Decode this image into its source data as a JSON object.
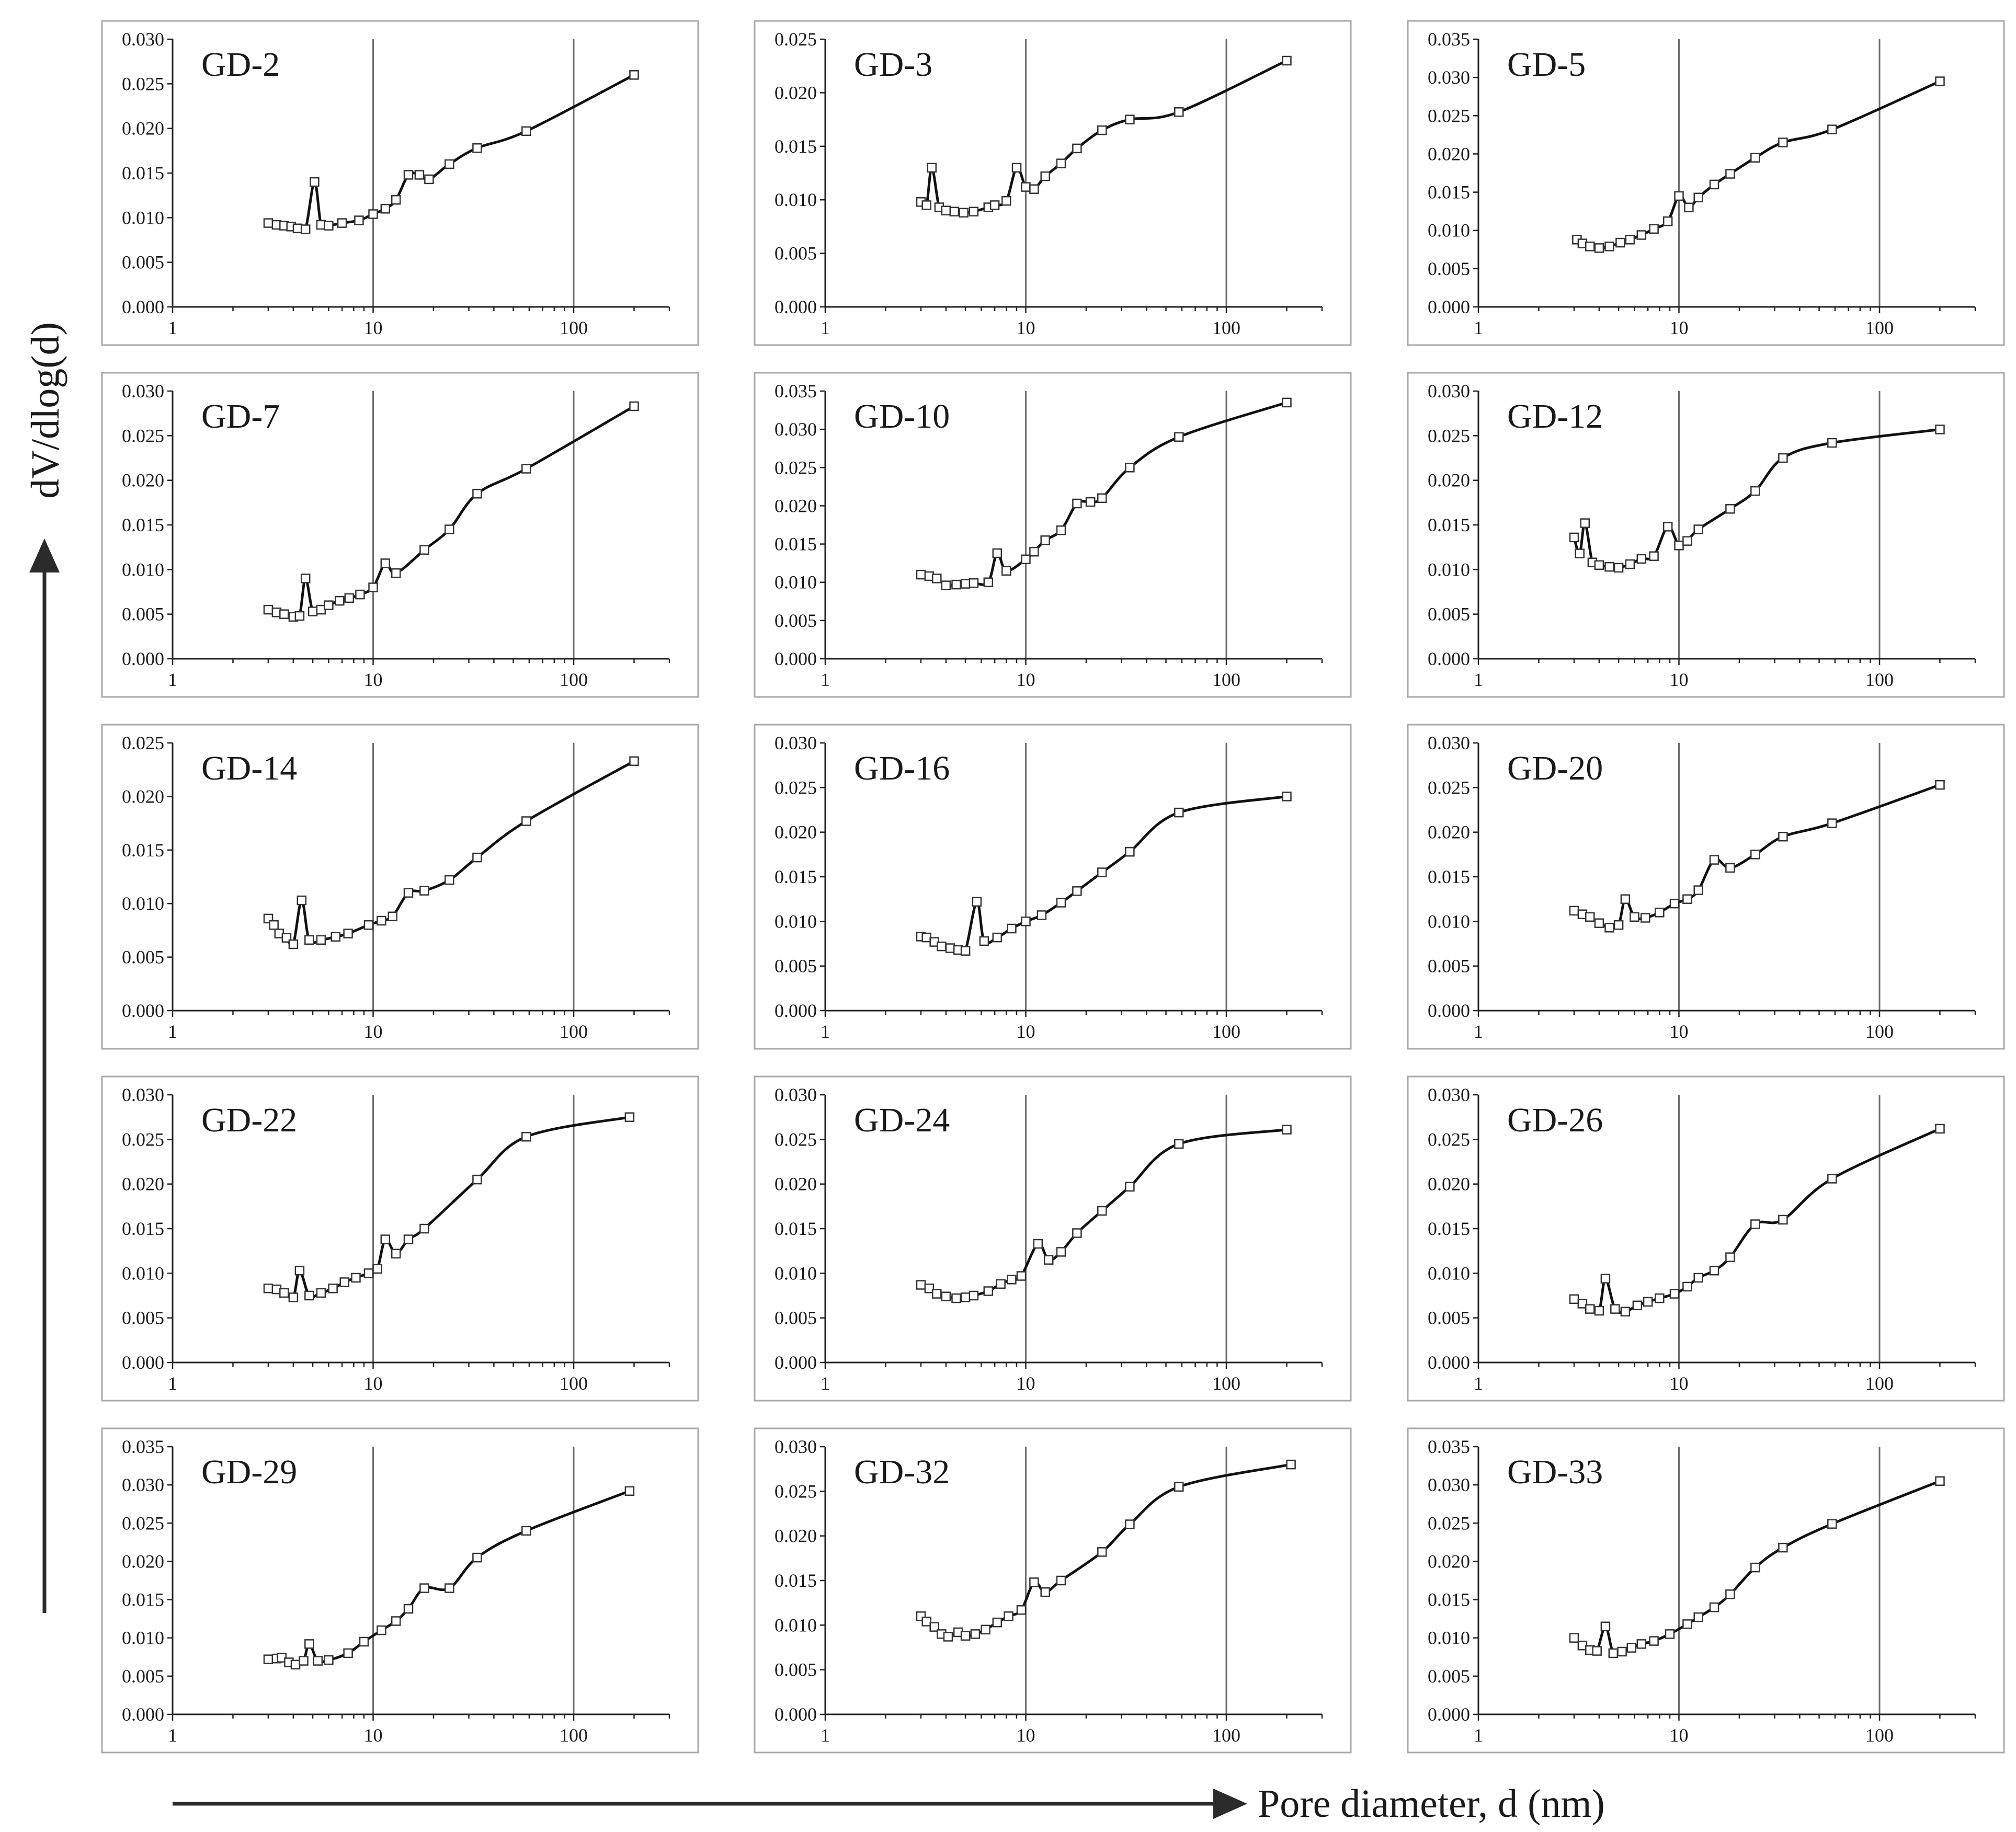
{
  "figure": {
    "ylabel": "dV/dlog(d)",
    "xlabel": "Pore diameter, d (nm)"
  },
  "chart_data": [
    {
      "type": "line",
      "title": "GD-2",
      "xscale": "log",
      "xlim": [
        1,
        300
      ],
      "ylim": [
        0,
        0.03
      ],
      "xticks": [
        1,
        10,
        100
      ],
      "yticks": [
        0,
        0.005,
        0.01,
        0.015,
        0.02,
        0.025,
        0.03
      ],
      "grid": "vertical at 10 and 100",
      "x": [
        3.0,
        3.3,
        3.6,
        3.9,
        4.2,
        4.6,
        5.1,
        5.5,
        6.0,
        7.0,
        8.5,
        10,
        11.5,
        13,
        15,
        17,
        19,
        24,
        33,
        58,
        200
      ],
      "y": [
        0.0094,
        0.0092,
        0.0091,
        0.009,
        0.0088,
        0.0087,
        0.014,
        0.0092,
        0.0091,
        0.0094,
        0.0097,
        0.0104,
        0.011,
        0.012,
        0.0148,
        0.0148,
        0.0143,
        0.016,
        0.0178,
        0.0197,
        0.026
      ]
    },
    {
      "type": "line",
      "title": "GD-3",
      "xscale": "log",
      "xlim": [
        1,
        300
      ],
      "ylim": [
        0,
        0.025
      ],
      "xticks": [
        1,
        10,
        100
      ],
      "yticks": [
        0,
        0.005,
        0.01,
        0.015,
        0.02,
        0.025
      ],
      "grid": "vertical at 10 and 100",
      "x": [
        3.0,
        3.2,
        3.4,
        3.7,
        4.0,
        4.4,
        4.9,
        5.5,
        6.5,
        7.0,
        8.0,
        9.0,
        10,
        11,
        12.5,
        15,
        18,
        24,
        33,
        58,
        200
      ],
      "y": [
        0.0098,
        0.0095,
        0.013,
        0.0093,
        0.009,
        0.0089,
        0.0088,
        0.0089,
        0.0093,
        0.0095,
        0.0099,
        0.013,
        0.0112,
        0.011,
        0.0122,
        0.0134,
        0.0148,
        0.0165,
        0.0175,
        0.0182,
        0.023
      ]
    },
    {
      "type": "line",
      "title": "GD-5",
      "xscale": "log",
      "xlim": [
        1,
        300
      ],
      "ylim": [
        0,
        0.035
      ],
      "xticks": [
        1,
        10,
        100
      ],
      "yticks": [
        0,
        0.005,
        0.01,
        0.015,
        0.02,
        0.025,
        0.03,
        0.035
      ],
      "grid": "vertical at 10 and 100",
      "x": [
        3.1,
        3.3,
        3.6,
        4.0,
        4.5,
        5.1,
        5.7,
        6.5,
        7.5,
        8.8,
        10,
        11.2,
        12.5,
        15,
        18,
        24,
        33,
        58,
        200
      ],
      "y": [
        0.0088,
        0.0083,
        0.0079,
        0.0077,
        0.0079,
        0.0084,
        0.0088,
        0.0094,
        0.0102,
        0.0112,
        0.0145,
        0.013,
        0.0143,
        0.016,
        0.0174,
        0.0195,
        0.0215,
        0.0232,
        0.0295
      ]
    },
    {
      "type": "line",
      "title": "GD-7",
      "xscale": "log",
      "xlim": [
        1,
        300
      ],
      "ylim": [
        0,
        0.03
      ],
      "xticks": [
        1,
        10,
        100
      ],
      "yticks": [
        0,
        0.005,
        0.01,
        0.015,
        0.02,
        0.025,
        0.03
      ],
      "grid": "vertical at 10 and 100",
      "x": [
        3.0,
        3.3,
        3.6,
        4.0,
        4.3,
        4.6,
        5.0,
        5.5,
        6.0,
        6.8,
        7.6,
        8.6,
        10,
        11.5,
        13,
        18,
        24,
        33,
        58,
        200
      ],
      "y": [
        0.0055,
        0.0052,
        0.005,
        0.0047,
        0.0048,
        0.009,
        0.0053,
        0.0055,
        0.006,
        0.0065,
        0.0068,
        0.0072,
        0.008,
        0.0107,
        0.0096,
        0.0122,
        0.0145,
        0.0185,
        0.0213,
        0.0283
      ]
    },
    {
      "type": "line",
      "title": "GD-10",
      "xscale": "log",
      "xlim": [
        1,
        300
      ],
      "ylim": [
        0,
        0.035
      ],
      "xticks": [
        1,
        10,
        100
      ],
      "yticks": [
        0,
        0.005,
        0.01,
        0.015,
        0.02,
        0.025,
        0.03,
        0.035
      ],
      "grid": "vertical at 10 and 100",
      "x": [
        3.0,
        3.3,
        3.6,
        4.0,
        4.5,
        5.0,
        5.5,
        6.5,
        7.2,
        8.0,
        10,
        11,
        12.5,
        15,
        18,
        21,
        24,
        33,
        58,
        200
      ],
      "y": [
        0.011,
        0.0108,
        0.0105,
        0.0096,
        0.0097,
        0.0098,
        0.0099,
        0.01,
        0.0138,
        0.0115,
        0.013,
        0.014,
        0.0155,
        0.0168,
        0.0203,
        0.0205,
        0.021,
        0.025,
        0.029,
        0.0335
      ]
    },
    {
      "type": "line",
      "title": "GD-12",
      "xscale": "log",
      "xlim": [
        1,
        300
      ],
      "ylim": [
        0,
        0.03
      ],
      "xticks": [
        1,
        10,
        100
      ],
      "yticks": [
        0,
        0.005,
        0.01,
        0.015,
        0.02,
        0.025,
        0.03
      ],
      "grid": "vertical at 10 and 100",
      "x": [
        3.0,
        3.2,
        3.4,
        3.7,
        4.0,
        4.5,
        5.0,
        5.7,
        6.5,
        7.5,
        8.8,
        10,
        11,
        12.5,
        18,
        24,
        33,
        58,
        200
      ],
      "y": [
        0.0136,
        0.0118,
        0.0152,
        0.0108,
        0.0105,
        0.0103,
        0.0102,
        0.0106,
        0.0112,
        0.0115,
        0.0148,
        0.0127,
        0.0132,
        0.0145,
        0.0168,
        0.0188,
        0.0225,
        0.0242,
        0.0257
      ]
    },
    {
      "type": "line",
      "title": "GD-14",
      "xscale": "log",
      "xlim": [
        1,
        300
      ],
      "ylim": [
        0,
        0.025
      ],
      "xticks": [
        1,
        10,
        100
      ],
      "yticks": [
        0,
        0.005,
        0.01,
        0.015,
        0.02,
        0.025
      ],
      "grid": "vertical at 10 and 100",
      "x": [
        3.0,
        3.2,
        3.4,
        3.7,
        4.0,
        4.4,
        4.8,
        5.5,
        6.5,
        7.5,
        9.5,
        11,
        12.5,
        15,
        18,
        24,
        33,
        58,
        200
      ],
      "y": [
        0.0086,
        0.008,
        0.0072,
        0.0068,
        0.0062,
        0.0103,
        0.0066,
        0.0066,
        0.0069,
        0.0072,
        0.008,
        0.0084,
        0.0088,
        0.011,
        0.0112,
        0.0122,
        0.0143,
        0.0177,
        0.0233
      ]
    },
    {
      "type": "line",
      "title": "GD-16",
      "xscale": "log",
      "xlim": [
        1,
        300
      ],
      "ylim": [
        0,
        0.03
      ],
      "xticks": [
        1,
        10,
        100
      ],
      "yticks": [
        0,
        0.005,
        0.01,
        0.015,
        0.02,
        0.025,
        0.03
      ],
      "grid": "vertical at 10 and 100",
      "x": [
        3.0,
        3.2,
        3.5,
        3.8,
        4.2,
        4.6,
        5.0,
        5.7,
        6.2,
        7.2,
        8.5,
        10,
        12,
        15,
        18,
        24,
        33,
        58,
        200
      ],
      "y": [
        0.0083,
        0.0082,
        0.0077,
        0.0072,
        0.007,
        0.0068,
        0.0067,
        0.0122,
        0.0078,
        0.0082,
        0.0092,
        0.01,
        0.0107,
        0.0121,
        0.0134,
        0.0155,
        0.0178,
        0.0222,
        0.024
      ]
    },
    {
      "type": "line",
      "title": "GD-20",
      "xscale": "log",
      "xlim": [
        1,
        300
      ],
      "ylim": [
        0,
        0.03
      ],
      "xticks": [
        1,
        10,
        100
      ],
      "yticks": [
        0,
        0.005,
        0.01,
        0.015,
        0.02,
        0.025,
        0.03
      ],
      "grid": "vertical at 10 and 100",
      "x": [
        3.0,
        3.3,
        3.6,
        4.0,
        4.5,
        5.0,
        5.4,
        6.0,
        6.8,
        8.0,
        9.5,
        11,
        12.5,
        15,
        18,
        24,
        33,
        58,
        200
      ],
      "y": [
        0.0112,
        0.0108,
        0.0105,
        0.0098,
        0.0093,
        0.0096,
        0.0125,
        0.0105,
        0.0104,
        0.011,
        0.012,
        0.0125,
        0.0135,
        0.0169,
        0.016,
        0.0175,
        0.0195,
        0.021,
        0.0253
      ]
    },
    {
      "type": "line",
      "title": "GD-22",
      "xscale": "log",
      "xlim": [
        1,
        300
      ],
      "ylim": [
        0,
        0.03
      ],
      "xticks": [
        1,
        10,
        100
      ],
      "yticks": [
        0,
        0.005,
        0.01,
        0.015,
        0.02,
        0.025,
        0.03
      ],
      "grid": "vertical at 10 and 100",
      "x": [
        3.0,
        3.3,
        3.6,
        4.0,
        4.3,
        4.8,
        5.5,
        6.3,
        7.2,
        8.2,
        9.5,
        10.5,
        11.5,
        13,
        15,
        18,
        33,
        58,
        190
      ],
      "y": [
        0.0083,
        0.0082,
        0.0078,
        0.0073,
        0.0103,
        0.0075,
        0.0078,
        0.0083,
        0.009,
        0.0095,
        0.01,
        0.0105,
        0.0138,
        0.0122,
        0.0138,
        0.015,
        0.0205,
        0.0253,
        0.0275
      ]
    },
    {
      "type": "line",
      "title": "GD-24",
      "xscale": "log",
      "xlim": [
        1,
        300
      ],
      "ylim": [
        0,
        0.03
      ],
      "xticks": [
        1,
        10,
        100
      ],
      "yticks": [
        0,
        0.005,
        0.01,
        0.015,
        0.02,
        0.025,
        0.03
      ],
      "grid": "vertical at 10 and 100",
      "x": [
        3.0,
        3.3,
        3.6,
        4.0,
        4.5,
        5.0,
        5.5,
        6.5,
        7.5,
        8.5,
        9.5,
        11.5,
        13,
        15,
        18,
        24,
        33,
        58,
        200
      ],
      "y": [
        0.0087,
        0.0083,
        0.0077,
        0.0074,
        0.0072,
        0.0073,
        0.0075,
        0.008,
        0.0088,
        0.0093,
        0.0097,
        0.0133,
        0.0115,
        0.0124,
        0.0145,
        0.017,
        0.0197,
        0.0245,
        0.0261
      ]
    },
    {
      "type": "line",
      "title": "GD-26",
      "xscale": "log",
      "xlim": [
        1,
        300
      ],
      "ylim": [
        0,
        0.03
      ],
      "xticks": [
        1,
        10,
        100
      ],
      "yticks": [
        0,
        0.005,
        0.01,
        0.015,
        0.02,
        0.025,
        0.03
      ],
      "grid": "vertical at 10 and 100",
      "x": [
        3.0,
        3.3,
        3.6,
        4.0,
        4.3,
        4.8,
        5.4,
        6.2,
        7.0,
        8.0,
        9.5,
        11,
        12.5,
        15,
        18,
        24,
        33,
        58,
        200
      ],
      "y": [
        0.0071,
        0.0066,
        0.006,
        0.0058,
        0.0094,
        0.006,
        0.0057,
        0.0064,
        0.0068,
        0.0072,
        0.0077,
        0.0085,
        0.0095,
        0.0103,
        0.0118,
        0.0155,
        0.016,
        0.0206,
        0.0262
      ]
    },
    {
      "type": "line",
      "title": "GD-29",
      "xscale": "log",
      "xlim": [
        1,
        300
      ],
      "ylim": [
        0,
        0.035
      ],
      "xticks": [
        1,
        10,
        100
      ],
      "yticks": [
        0,
        0.005,
        0.01,
        0.015,
        0.02,
        0.025,
        0.03,
        0.035
      ],
      "grid": "vertical at 10 and 100",
      "x": [
        3.0,
        3.3,
        3.5,
        3.8,
        4.1,
        4.5,
        4.8,
        5.3,
        6.0,
        7.5,
        9.0,
        11,
        13,
        15,
        18,
        24,
        33,
        58,
        190
      ],
      "y": [
        0.0072,
        0.0073,
        0.0074,
        0.0068,
        0.0065,
        0.007,
        0.0092,
        0.007,
        0.0071,
        0.008,
        0.0095,
        0.011,
        0.0122,
        0.0138,
        0.0165,
        0.0165,
        0.0205,
        0.024,
        0.0292
      ]
    },
    {
      "type": "line",
      "title": "GD-32",
      "xscale": "log",
      "xlim": [
        1,
        300
      ],
      "ylim": [
        0,
        0.03
      ],
      "xticks": [
        1,
        10,
        100
      ],
      "yticks": [
        0,
        0.005,
        0.01,
        0.015,
        0.02,
        0.025,
        0.03
      ],
      "grid": "vertical at 10 and 100",
      "x": [
        3.0,
        3.2,
        3.5,
        3.8,
        4.1,
        4.6,
        5.0,
        5.6,
        6.3,
        7.2,
        8.2,
        9.5,
        11,
        12.5,
        15,
        24,
        33,
        58,
        210
      ],
      "y": [
        0.011,
        0.0104,
        0.0098,
        0.009,
        0.0087,
        0.0092,
        0.0088,
        0.009,
        0.0095,
        0.0103,
        0.011,
        0.0117,
        0.0148,
        0.0137,
        0.015,
        0.0182,
        0.0213,
        0.0255,
        0.028
      ]
    },
    {
      "type": "line",
      "title": "GD-33",
      "xscale": "log",
      "xlim": [
        1,
        300
      ],
      "ylim": [
        0,
        0.035
      ],
      "xticks": [
        1,
        10,
        100
      ],
      "yticks": [
        0,
        0.005,
        0.01,
        0.015,
        0.02,
        0.025,
        0.03,
        0.035
      ],
      "grid": "vertical at 10 and 100",
      "x": [
        3.0,
        3.3,
        3.6,
        3.9,
        4.3,
        4.7,
        5.2,
        5.8,
        6.5,
        7.5,
        9,
        11,
        12.5,
        15,
        18,
        24,
        33,
        58,
        200
      ],
      "y": [
        0.01,
        0.009,
        0.0084,
        0.0083,
        0.0115,
        0.008,
        0.0082,
        0.0087,
        0.0092,
        0.0096,
        0.0105,
        0.0118,
        0.0127,
        0.014,
        0.0157,
        0.0192,
        0.0218,
        0.0249,
        0.0305
      ]
    }
  ]
}
